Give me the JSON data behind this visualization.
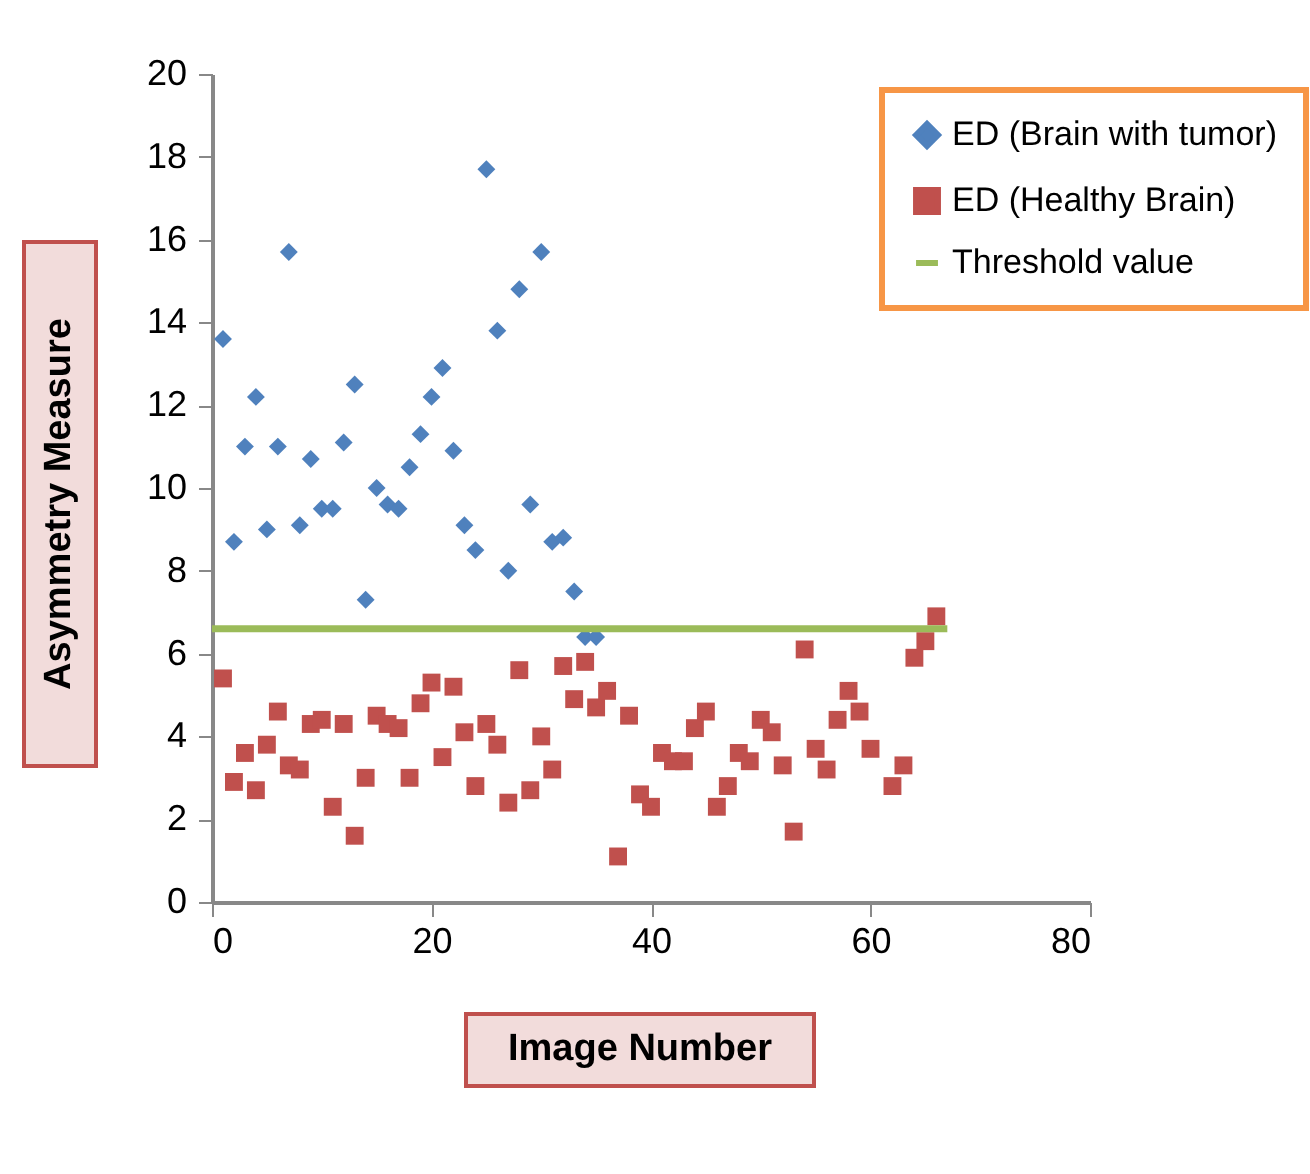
{
  "chart_data": {
    "type": "scatter",
    "xlabel": "Image Number",
    "ylabel": "Asymmetry Measure",
    "xlim": [
      0,
      80
    ],
    "xticks": [
      0,
      20,
      40,
      60,
      80
    ],
    "ylim": [
      0,
      20
    ],
    "yticks": [
      0,
      2,
      4,
      6,
      8,
      10,
      12,
      14,
      16,
      18,
      20
    ],
    "grid": false,
    "legend": "top right",
    "series": [
      {
        "name": "ED (Brain with tumor)",
        "color": "#4f81bd",
        "marker": "diamond",
        "x": [
          1,
          2,
          3,
          4,
          5,
          6,
          7,
          8,
          9,
          10,
          11,
          12,
          13,
          14,
          15,
          16,
          17,
          18,
          19,
          20,
          21,
          22,
          23,
          24,
          25,
          26,
          27,
          28,
          29,
          30,
          31,
          32,
          33,
          34,
          35
        ],
        "values": [
          13.6,
          8.7,
          11.0,
          12.2,
          9.0,
          11.0,
          15.7,
          9.1,
          10.7,
          9.5,
          9.5,
          11.1,
          12.5,
          7.3,
          10.0,
          9.6,
          9.5,
          10.5,
          11.3,
          12.2,
          12.9,
          10.9,
          9.1,
          8.5,
          17.7,
          13.8,
          8.0,
          14.8,
          9.6,
          15.7,
          8.7,
          8.8,
          7.5,
          6.4,
          6.4
        ]
      },
      {
        "name": "ED (Healthy Brain)",
        "color": "#c0504d",
        "marker": "square",
        "x": [
          1,
          2,
          3,
          4,
          5,
          6,
          7,
          8,
          9,
          10,
          11,
          12,
          13,
          14,
          15,
          16,
          17,
          18,
          19,
          20,
          21,
          22,
          23,
          24,
          25,
          26,
          27,
          28,
          29,
          30,
          31,
          32,
          33,
          34,
          35,
          36,
          37,
          38,
          39,
          40,
          41,
          42,
          43,
          44,
          45,
          46,
          47,
          48,
          49,
          50,
          51,
          52,
          53,
          54,
          55,
          56,
          57,
          58,
          59,
          60,
          62,
          63,
          64,
          65,
          66
        ],
        "values": [
          5.4,
          2.9,
          3.6,
          2.7,
          3.8,
          4.6,
          3.3,
          3.2,
          4.3,
          4.4,
          2.3,
          4.3,
          1.6,
          3.0,
          4.5,
          4.3,
          4.2,
          3.0,
          4.8,
          5.3,
          3.5,
          5.2,
          4.1,
          2.8,
          4.3,
          3.8,
          2.4,
          5.6,
          2.7,
          4.0,
          3.2,
          5.7,
          4.9,
          5.8,
          4.7,
          5.1,
          1.1,
          4.5,
          2.6,
          2.3,
          3.6,
          3.4,
          3.4,
          4.2,
          4.6,
          2.3,
          2.8,
          3.6,
          3.4,
          4.4,
          4.1,
          3.3,
          1.7,
          6.1,
          3.7,
          3.2,
          4.4,
          5.1,
          4.6,
          3.7,
          2.8,
          3.3,
          5.9,
          6.3,
          6.9
        ]
      },
      {
        "name": "Threshold value",
        "type": "line",
        "color": "#9bbb59",
        "marker": "none",
        "x": [
          0,
          67
        ],
        "values": [
          6.6,
          6.6
        ]
      }
    ]
  }
}
